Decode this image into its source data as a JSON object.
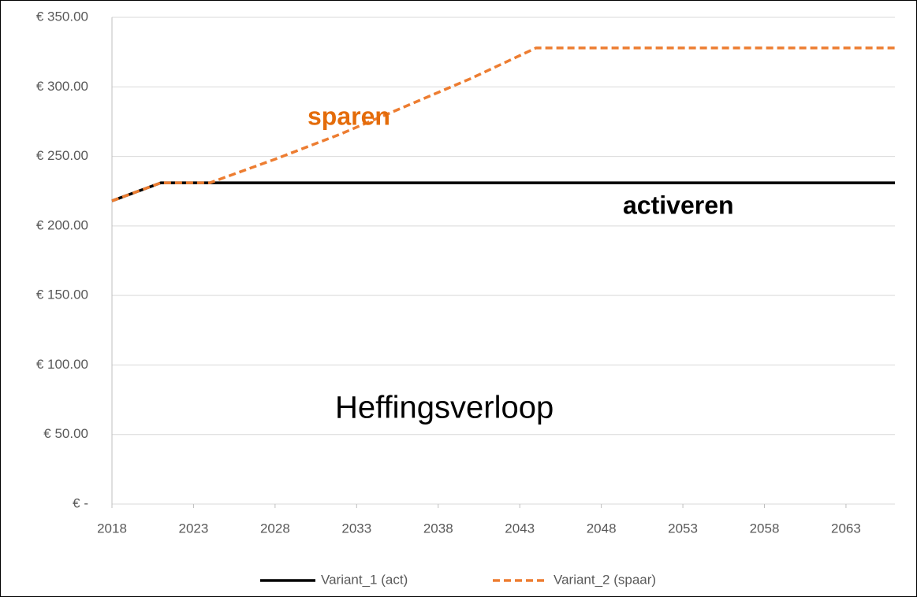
{
  "chart_data": {
    "type": "line",
    "x": [
      2018,
      2021,
      2024,
      2028,
      2032,
      2036,
      2040,
      2044,
      2066
    ],
    "series": [
      {
        "name": "Variant_1 (act)",
        "color": "#000000",
        "dash": false,
        "values": [
          218,
          231,
          231,
          231,
          231,
          231,
          231,
          231,
          231
        ]
      },
      {
        "name": "Variant_2 (spaar)",
        "color": "#ed7d31",
        "dash": true,
        "values": [
          218,
          231,
          231,
          248,
          266,
          286,
          306,
          328,
          328
        ]
      }
    ],
    "xlim": [
      2018,
      2066
    ],
    "xticks": [
      2018,
      2023,
      2028,
      2033,
      2038,
      2043,
      2048,
      2053,
      2058,
      2063
    ],
    "ylim": [
      0,
      350
    ],
    "yticks": [
      {
        "value": 0,
        "label": "€ -"
      },
      {
        "value": 50,
        "label": "€ 50.00"
      },
      {
        "value": 100,
        "label": "€ 100.00"
      },
      {
        "value": 150,
        "label": "€ 150.00"
      },
      {
        "value": 200,
        "label": "€ 200.00"
      },
      {
        "value": 250,
        "label": "€ 250.00"
      },
      {
        "value": 300,
        "label": "€ 300.00"
      },
      {
        "value": 350,
        "label": "€ 350.00"
      }
    ],
    "grid": true,
    "legend": "bottom",
    "annotations": [
      "sparen",
      "activeren",
      "Heffingsverloop"
    ]
  }
}
